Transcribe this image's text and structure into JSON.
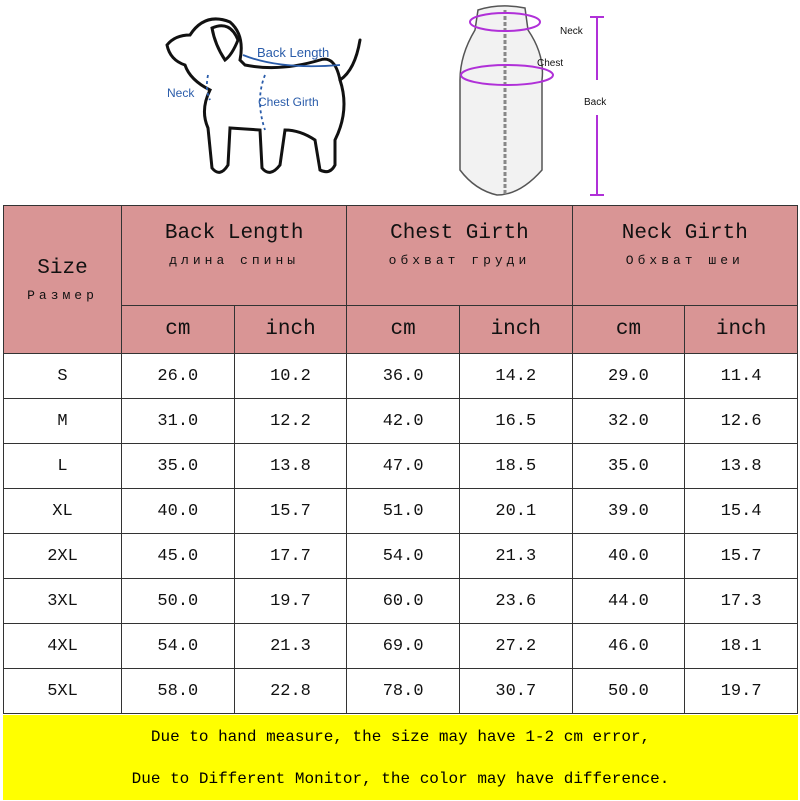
{
  "diagram": {
    "dog_labels": {
      "back_length": "Back Length",
      "neck": "Neck",
      "chest_girth": "Chest Girth"
    },
    "vest_labels": {
      "neck": "Neck",
      "chest": "Chest",
      "back": "Back"
    },
    "colors": {
      "dog_arrows": "#2a5caa",
      "vest_arrows": "#b030d8"
    }
  },
  "table": {
    "size_header": "Size",
    "size_header_ru": "Размер",
    "groups": [
      {
        "label": "Back Length",
        "label_ru": "длина спины"
      },
      {
        "label": "Chest Girth",
        "label_ru": "обхват груди"
      },
      {
        "label": "Neck Girth",
        "label_ru": "Обхват шеи"
      }
    ],
    "units": [
      "cm",
      "inch",
      "cm",
      "inch",
      "cm",
      "inch"
    ],
    "rows": [
      [
        "S",
        "26.0",
        "10.2",
        "36.0",
        "14.2",
        "29.0",
        "11.4"
      ],
      [
        "M",
        "31.0",
        "12.2",
        "42.0",
        "16.5",
        "32.0",
        "12.6"
      ],
      [
        "L",
        "35.0",
        "13.8",
        "47.0",
        "18.5",
        "35.0",
        "13.8"
      ],
      [
        "XL",
        "40.0",
        "15.7",
        "51.0",
        "20.1",
        "39.0",
        "15.4"
      ],
      [
        "2XL",
        "45.0",
        "17.7",
        "54.0",
        "21.3",
        "40.0",
        "15.7"
      ],
      [
        "3XL",
        "50.0",
        "19.7",
        "60.0",
        "23.6",
        "44.0",
        "17.3"
      ],
      [
        "4XL",
        "54.0",
        "21.3",
        "69.0",
        "27.2",
        "46.0",
        "18.1"
      ],
      [
        "5XL",
        "58.0",
        "22.8",
        "78.0",
        "30.7",
        "50.0",
        "19.7"
      ]
    ],
    "header_color": "#d99595"
  },
  "footer": {
    "line1": "Due to hand measure, the size may have 1-2 cm error,",
    "line2": "Due to Different Monitor, the color may have difference.",
    "color": "#ffff00"
  }
}
